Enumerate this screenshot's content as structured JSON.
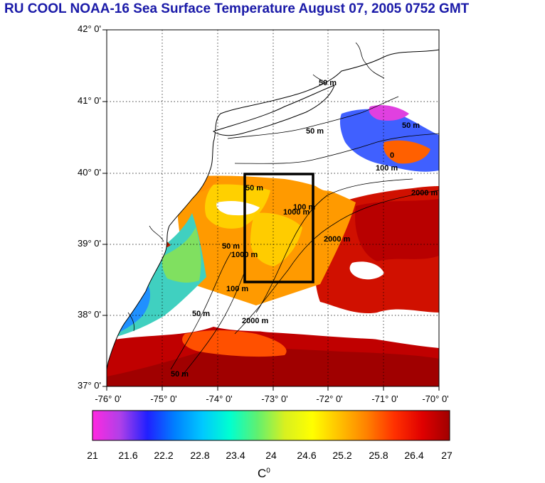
{
  "title": "RU COOL  NOAA-16 Sea Surface Temperature August 07, 2005 0752 GMT",
  "map": {
    "lat_labels": [
      "42° 0'",
      "41° 0'",
      "40° 0'",
      "39° 0'",
      "38° 0'",
      "37° 0'"
    ],
    "lon_labels": [
      "-76° 0'",
      "-75° 0'",
      "-74° 0'",
      "-73° 0'",
      "-72° 0'",
      "-71° 0'",
      "-70° 0'"
    ],
    "lat_range": [
      37,
      42
    ],
    "lon_range": [
      -76,
      -70
    ],
    "grid": "dotted",
    "study_box": {
      "lon_min": -73.5,
      "lon_max": -72.25,
      "lat_min": 38.5,
      "lat_max": 40.0
    },
    "contour_labels": [
      "50 m",
      "50 m",
      "50 m",
      "0",
      "100 m",
      "2000 m",
      "50 m",
      "100 m",
      "1000 m",
      "50 m",
      "2000 m",
      "100 m",
      "2000 m",
      "1000 m",
      "50 m",
      "50 m"
    ],
    "land_color": "#ffffff",
    "cloud_color": "#ffffff",
    "coast_color": "#000000"
  },
  "colorbar": {
    "labels": [
      "21",
      "21.6",
      "22.2",
      "22.8",
      "23.4",
      "24",
      "24.6",
      "25.2",
      "25.8",
      "26.4",
      "27"
    ],
    "min": 21,
    "max": 27,
    "colors": [
      "#ff28e0",
      "#b040e8",
      "#2020ff",
      "#0080ff",
      "#00c8ff",
      "#00ffd0",
      "#60f070",
      "#d8f020",
      "#ffff00",
      "#ffc000",
      "#ff8000",
      "#ff3000",
      "#e00000",
      "#a00000"
    ],
    "unit_base": "C",
    "unit_sup": "0"
  }
}
